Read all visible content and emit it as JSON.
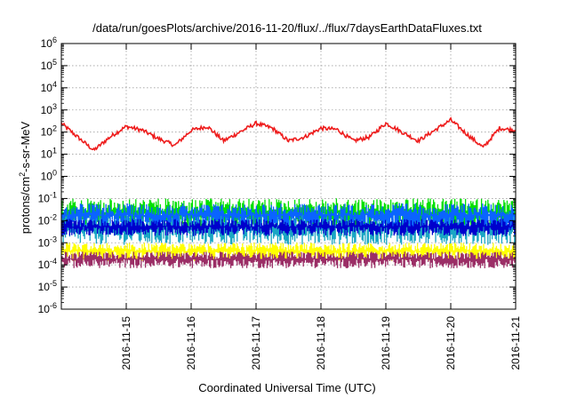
{
  "chart_data": {
    "type": "line",
    "title": "/data/run/goesPlots/archive/2016-11-20/flux/../flux/7daysEarthDataFluxes.txt",
    "xlabel": "Coordinated Universal Time (UTC)",
    "ylabel": "protons/cm2-s-sr-MeV",
    "ylabel_parts": {
      "pre": "protons/cm",
      "sup": "2",
      "post": "-s-sr-MeV"
    },
    "y_scale": "log",
    "ylim_exp": [
      -6,
      6
    ],
    "y_ticks": [
      {
        "base": "10",
        "exp": "6"
      },
      {
        "base": "10",
        "exp": "5"
      },
      {
        "base": "10",
        "exp": "4"
      },
      {
        "base": "10",
        "exp": "3"
      },
      {
        "base": "10",
        "exp": "2"
      },
      {
        "base": "10",
        "exp": "1"
      },
      {
        "base": "10",
        "exp": "0"
      },
      {
        "base": "10",
        "exp": "-1"
      },
      {
        "base": "10",
        "exp": "-2"
      },
      {
        "base": "10",
        "exp": "-3"
      },
      {
        "base": "10",
        "exp": "-4"
      },
      {
        "base": "10",
        "exp": "-5"
      },
      {
        "base": "10",
        "exp": "-6"
      }
    ],
    "x_start": "2016-11-14",
    "x_end": "2016-11-21",
    "x_ticks": [
      "2016-11-15",
      "2016-11-16",
      "2016-11-17",
      "2016-11-18",
      "2016-11-19",
      "2016-11-20",
      "2016-11-21"
    ],
    "grid": true,
    "legend": "none",
    "series": [
      {
        "color": "#ee1c1c",
        "x": [
          "2016-11-14T00:00",
          "2016-11-14T06:00",
          "2016-11-14T12:00",
          "2016-11-14T18:00",
          "2016-11-15T00:00",
          "2016-11-15T06:00",
          "2016-11-15T12:00",
          "2016-11-15T18:00",
          "2016-11-16T00:00",
          "2016-11-16T06:00",
          "2016-11-16T12:00",
          "2016-11-16T18:00",
          "2016-11-17T00:00",
          "2016-11-17T06:00",
          "2016-11-17T12:00",
          "2016-11-17T18:00",
          "2016-11-18T00:00",
          "2016-11-18T06:00",
          "2016-11-18T12:00",
          "2016-11-18T18:00",
          "2016-11-19T00:00",
          "2016-11-19T06:00",
          "2016-11-19T12:00",
          "2016-11-19T18:00",
          "2016-11-20T00:00",
          "2016-11-20T06:00",
          "2016-11-20T12:00",
          "2016-11-20T18:00",
          "2016-11-21T00:00"
        ],
        "y": [
          250,
          60,
          15,
          60,
          180,
          120,
          50,
          25,
          120,
          180,
          40,
          100,
          250,
          150,
          40,
          60,
          150,
          130,
          40,
          60,
          250,
          100,
          40,
          120,
          350,
          80,
          20,
          150,
          120
        ]
      },
      {
        "color": "#00e000",
        "band": true,
        "low": 0.004,
        "high": 0.1
      },
      {
        "color": "#1aa6c4",
        "band": true,
        "low": 0.0008,
        "high": 0.02
      },
      {
        "color": "#0a64ff",
        "band": true,
        "low": 0.004,
        "high": 0.06
      },
      {
        "color": "#0000cc",
        "band": true,
        "low": 0.002,
        "high": 0.012
      },
      {
        "color": "#ffff00",
        "band": true,
        "low": 0.00015,
        "high": 0.001
      },
      {
        "color": "#9b2e66",
        "band": true,
        "low": 7e-05,
        "high": 0.0004
      }
    ]
  }
}
